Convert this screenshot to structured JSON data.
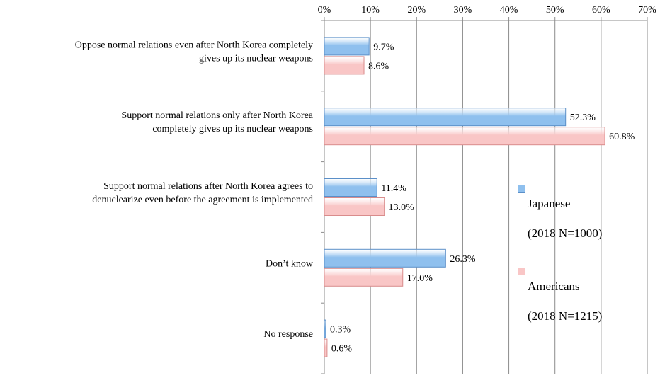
{
  "chart_data": {
    "type": "bar",
    "orientation": "horizontal",
    "title": "",
    "xlabel": "",
    "ylabel": "",
    "xlim": [
      0,
      70
    ],
    "x_ticks": [
      "0%",
      "10%",
      "20%",
      "30%",
      "40%",
      "50%",
      "60%",
      "70%"
    ],
    "grid": "vertical",
    "legend_position": "right",
    "categories": [
      [
        "Oppose normal relations even after North Korea completely",
        "gives up its nuclear weapons"
      ],
      [
        "Support normal relations only after North Korea",
        "completely gives up its nuclear weapons"
      ],
      [
        "Support normal relations after North Korea agrees to",
        "denuclearize even before the agreement is implemented"
      ],
      [
        "Don’t know"
      ],
      [
        "No response"
      ]
    ],
    "series": [
      {
        "name": "Japanese",
        "name_detail": "(2018 N=1000)",
        "values": [
          9.7,
          52.3,
          11.4,
          26.3,
          0.3
        ],
        "labels": [
          "9.7%",
          "52.3%",
          "11.4%",
          "26.3%",
          "0.3%"
        ],
        "color": "#8fc0ee",
        "border": "#5b8fc8"
      },
      {
        "name": "Americans",
        "name_detail": "(2018 N=1215)",
        "values": [
          8.6,
          60.8,
          13.0,
          17.0,
          0.6
        ],
        "labels": [
          "8.6%",
          "60.8%",
          "13.0%",
          "17.0%",
          "0.6%"
        ],
        "color": "#f9c6c6",
        "border": "#d98c8c"
      }
    ]
  }
}
